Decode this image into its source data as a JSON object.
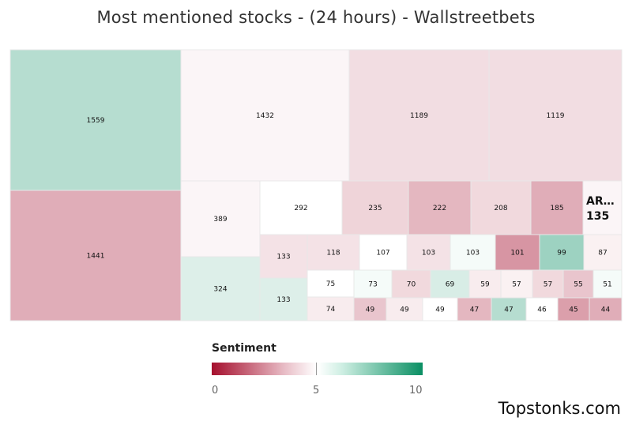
{
  "title": "Most mentioned stocks - (24 hours) - Wallstreetbets",
  "legend": {
    "title": "Sentiment",
    "ticks": [
      "0",
      "5",
      "10"
    ],
    "scale_colors": {
      "low": "#a50f2d",
      "mid": "#ffffff",
      "high": "#0a8f63"
    }
  },
  "watermark": "Topstonks.com",
  "chart_data": {
    "type": "treemap",
    "value_meaning": "mentions",
    "color_meaning": "sentiment (0-10)",
    "items": [
      {
        "value": 1559,
        "sentiment": 6.5
      },
      {
        "value": 1441,
        "sentiment": 3.3
      },
      {
        "value": 1432,
        "sentiment": 4.8
      },
      {
        "value": 1189,
        "sentiment": 4.3
      },
      {
        "value": 1119,
        "sentiment": 4.3
      },
      {
        "value": 389,
        "sentiment": 4.8
      },
      {
        "value": 324,
        "sentiment": 5.7
      },
      {
        "value": 292,
        "sentiment": 5.0
      },
      {
        "value": 235,
        "sentiment": 4.1
      },
      {
        "value": 222,
        "sentiment": 3.5
      },
      {
        "value": 208,
        "sentiment": 4.2
      },
      {
        "value": 185,
        "sentiment": 3.3
      },
      {
        "value": 135,
        "sentiment": 4.8,
        "label": "AR…"
      },
      {
        "value": 133,
        "sentiment": 4.4
      },
      {
        "value": 133,
        "sentiment": 5.7
      },
      {
        "value": 118,
        "sentiment": 4.4
      },
      {
        "value": 107,
        "sentiment": 5.0
      },
      {
        "value": 103,
        "sentiment": 4.4
      },
      {
        "value": 103,
        "sentiment": 5.2
      },
      {
        "value": 101,
        "sentiment": 2.8
      },
      {
        "value": 99,
        "sentiment": 7.0
      },
      {
        "value": 87,
        "sentiment": 4.7
      },
      {
        "value": 75,
        "sentiment": 5.0
      },
      {
        "value": 74,
        "sentiment": 4.6
      },
      {
        "value": 73,
        "sentiment": 5.2
      },
      {
        "value": 70,
        "sentiment": 4.2
      },
      {
        "value": 69,
        "sentiment": 5.8
      },
      {
        "value": 59,
        "sentiment": 4.6
      },
      {
        "value": 57,
        "sentiment": 4.7
      },
      {
        "value": 57,
        "sentiment": 4.2
      },
      {
        "value": 55,
        "sentiment": 3.8
      },
      {
        "value": 51,
        "sentiment": 5.2
      },
      {
        "value": 49,
        "sentiment": 3.8
      },
      {
        "value": 49,
        "sentiment": 4.6
      },
      {
        "value": 49,
        "sentiment": 5.0
      },
      {
        "value": 47,
        "sentiment": 3.5
      },
      {
        "value": 47,
        "sentiment": 6.5
      },
      {
        "value": 46,
        "sentiment": 5.0
      },
      {
        "value": 45,
        "sentiment": 3.0
      },
      {
        "value": 44,
        "sentiment": 3.3
      }
    ]
  }
}
